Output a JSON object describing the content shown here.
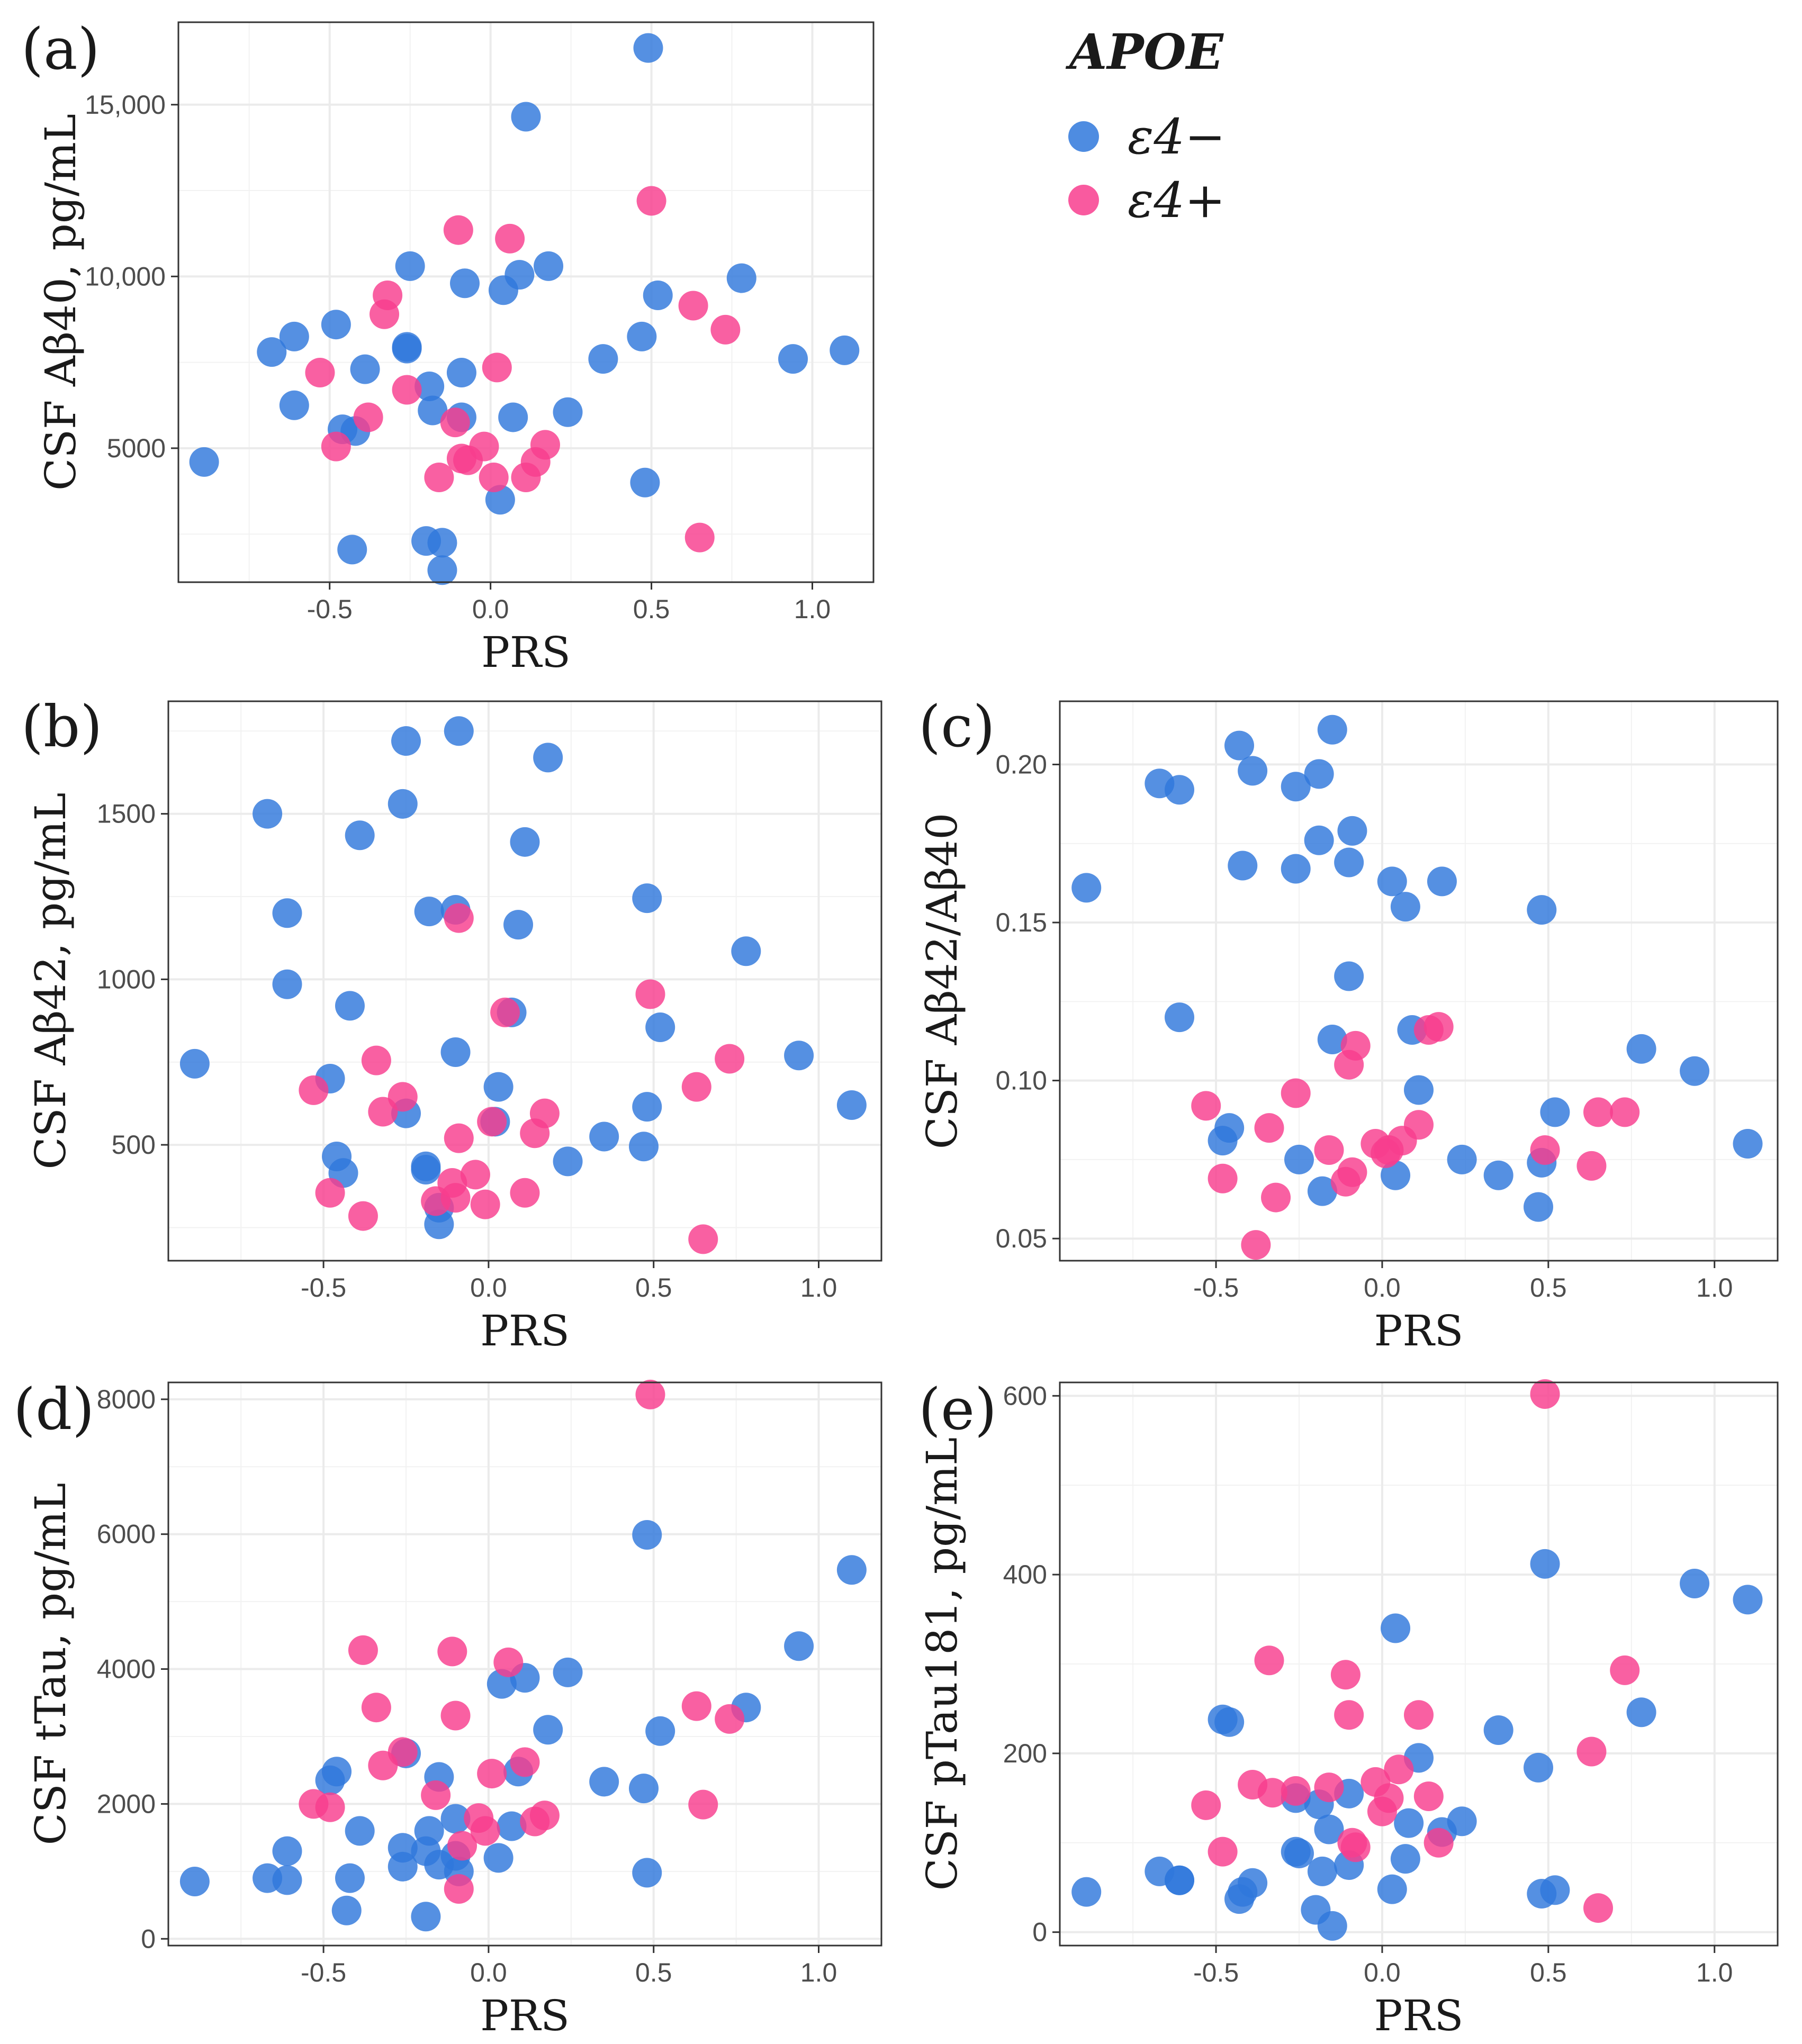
{
  "legend": {
    "title": "APOE",
    "items": [
      {
        "label": "ε4−",
        "color": "#2f78dc"
      },
      {
        "label": "ε4+",
        "color": "#f83d8e"
      }
    ]
  },
  "chart_data": [
    {
      "type": "scatter",
      "panel_label": "(a)",
      "xlabel": "PRS",
      "ylabel": "CSF Aβ40, pg/mL",
      "xlim": [
        -0.97,
        1.19
      ],
      "ylim": [
        1100,
        17400
      ],
      "x_ticks": [
        -0.5,
        0.0,
        0.5,
        1.0
      ],
      "x_tick_labels": [
        "-0.5",
        "0.0",
        "0.5",
        "1.0"
      ],
      "y_ticks": [
        5000,
        10000,
        15000
      ],
      "y_tick_labels": [
        "5000",
        "10,000",
        "15,000"
      ],
      "series": [
        {
          "name": "ε4−",
          "x": [
            -0.89,
            -0.68,
            -0.61,
            -0.61,
            -0.48,
            -0.46,
            -0.43,
            -0.42,
            -0.39,
            -0.26,
            -0.26,
            -0.25,
            -0.2,
            -0.19,
            -0.18,
            -0.15,
            -0.15,
            -0.09,
            -0.09,
            -0.08,
            0.03,
            0.04,
            0.07,
            0.09,
            0.11,
            0.18,
            0.24,
            0.35,
            0.47,
            0.48,
            0.49,
            0.52,
            0.78,
            0.94,
            1.1
          ],
          "y": [
            4600,
            7800,
            6250,
            8250,
            8600,
            5550,
            2050,
            5500,
            7300,
            7900,
            7950,
            10300,
            2300,
            6800,
            6100,
            2250,
            1450,
            7200,
            5900,
            9800,
            3500,
            9600,
            5900,
            10050,
            14650,
            10300,
            6050,
            7600,
            8250,
            4000,
            16650,
            9450,
            9950,
            7600,
            7850
          ]
        },
        {
          "name": "ε4+",
          "x": [
            -0.53,
            -0.48,
            -0.38,
            -0.33,
            -0.32,
            -0.26,
            -0.16,
            -0.11,
            -0.1,
            -0.09,
            -0.07,
            -0.02,
            0.01,
            0.02,
            0.06,
            0.11,
            0.14,
            0.17,
            0.5,
            0.63,
            0.65,
            0.73
          ],
          "y": [
            7200,
            5050,
            5900,
            8900,
            9450,
            6700,
            4150,
            5750,
            11350,
            4700,
            4650,
            5050,
            4150,
            7350,
            11100,
            4150,
            4600,
            5100,
            12200,
            9150,
            2400,
            8450
          ]
        }
      ]
    },
    {
      "type": "scatter",
      "panel_label": "(b)",
      "xlabel": "PRS",
      "ylabel": "CSF Aβ42, pg/mL",
      "xlim": [
        -0.97,
        1.19
      ],
      "ylim": [
        150,
        1840
      ],
      "x_ticks": [
        -0.5,
        0.0,
        0.5,
        1.0
      ],
      "x_tick_labels": [
        "-0.5",
        "0.0",
        "0.5",
        "1.0"
      ],
      "y_ticks": [
        500,
        1000,
        1500
      ],
      "y_tick_labels": [
        "500",
        "1000",
        "1500"
      ],
      "series": [
        {
          "name": "ε4−",
          "x": [
            -0.89,
            -0.67,
            -0.61,
            -0.61,
            -0.48,
            -0.46,
            -0.44,
            -0.42,
            -0.39,
            -0.26,
            -0.25,
            -0.25,
            -0.19,
            -0.19,
            -0.18,
            -0.15,
            -0.15,
            -0.1,
            -0.1,
            -0.09,
            0.02,
            0.03,
            0.07,
            0.09,
            0.11,
            0.18,
            0.24,
            0.35,
            0.47,
            0.48,
            0.48,
            0.52,
            0.78,
            0.94,
            1.1
          ],
          "y": [
            745,
            1500,
            985,
            1200,
            700,
            465,
            415,
            920,
            1435,
            1530,
            1720,
            595,
            425,
            435,
            1205,
            260,
            310,
            780,
            1210,
            1750,
            570,
            675,
            900,
            1165,
            1415,
            1670,
            450,
            525,
            495,
            615,
            1245,
            855,
            1085,
            770,
            620
          ]
        },
        {
          "name": "ε4+",
          "x": [
            -0.53,
            -0.48,
            -0.38,
            -0.34,
            -0.32,
            -0.26,
            -0.16,
            -0.11,
            -0.1,
            -0.09,
            -0.09,
            -0.04,
            -0.01,
            0.01,
            0.05,
            0.11,
            0.14,
            0.17,
            0.49,
            0.63,
            0.65,
            0.73
          ],
          "y": [
            665,
            355,
            285,
            755,
            600,
            645,
            330,
            385,
            340,
            1185,
            520,
            410,
            320,
            570,
            900,
            355,
            535,
            595,
            955,
            675,
            215,
            760
          ]
        }
      ]
    },
    {
      "type": "scatter",
      "panel_label": "(c)",
      "xlabel": "PRS",
      "ylabel": "CSF Aβ42/Aβ40",
      "xlim": [
        -0.97,
        1.19
      ],
      "ylim": [
        0.043,
        0.22
      ],
      "x_ticks": [
        -0.5,
        0.0,
        0.5,
        1.0
      ],
      "x_tick_labels": [
        "-0.5",
        "0.0",
        "0.5",
        "1.0"
      ],
      "y_ticks": [
        0.05,
        0.1,
        0.15,
        0.2
      ],
      "y_tick_labels": [
        "0.05",
        "0.10",
        "0.15",
        "0.20"
      ],
      "series": [
        {
          "name": "ε4−",
          "x": [
            -0.89,
            -0.67,
            -0.61,
            -0.61,
            -0.48,
            -0.46,
            -0.43,
            -0.42,
            -0.39,
            -0.26,
            -0.26,
            -0.25,
            -0.19,
            -0.19,
            -0.18,
            -0.15,
            -0.15,
            -0.1,
            -0.1,
            -0.09,
            0.03,
            0.04,
            0.07,
            0.09,
            0.11,
            0.18,
            0.24,
            0.35,
            0.47,
            0.48,
            0.48,
            0.52,
            0.78,
            0.94,
            1.1
          ],
          "y": [
            0.161,
            0.194,
            0.192,
            0.12,
            0.081,
            0.085,
            0.206,
            0.168,
            0.198,
            0.193,
            0.167,
            0.075,
            0.197,
            0.176,
            0.065,
            0.211,
            0.113,
            0.169,
            0.133,
            0.179,
            0.163,
            0.07,
            0.155,
            0.116,
            0.097,
            0.163,
            0.075,
            0.07,
            0.06,
            0.074,
            0.154,
            0.09,
            0.11,
            0.103,
            0.08
          ]
        },
        {
          "name": "ε4+",
          "x": [
            -0.53,
            -0.48,
            -0.38,
            -0.34,
            -0.32,
            -0.26,
            -0.16,
            -0.11,
            -0.1,
            -0.09,
            -0.08,
            -0.02,
            0.01,
            0.02,
            0.06,
            0.11,
            0.14,
            0.17,
            0.49,
            0.63,
            0.65,
            0.73
          ],
          "y": [
            0.092,
            0.069,
            0.048,
            0.085,
            0.063,
            0.096,
            0.078,
            0.068,
            0.105,
            0.071,
            0.111,
            0.08,
            0.077,
            0.078,
            0.081,
            0.086,
            0.116,
            0.117,
            0.078,
            0.073,
            0.09,
            0.09
          ]
        }
      ]
    },
    {
      "type": "scatter",
      "panel_label": "(d)",
      "xlabel": "PRS",
      "ylabel": "CSF tTau, pg/mL",
      "xlim": [
        -0.97,
        1.19
      ],
      "ylim": [
        -100,
        8250
      ],
      "x_ticks": [
        -0.5,
        0.0,
        0.5,
        1.0
      ],
      "x_tick_labels": [
        "-0.5",
        "0.0",
        "0.5",
        "1.0"
      ],
      "y_ticks": [
        0,
        2000,
        4000,
        6000,
        8000
      ],
      "y_tick_labels": [
        "0",
        "2000",
        "4000",
        "6000",
        "8000"
      ],
      "series": [
        {
          "name": "ε4−",
          "x": [
            -0.89,
            -0.67,
            -0.61,
            -0.61,
            -0.48,
            -0.46,
            -0.43,
            -0.42,
            -0.39,
            -0.26,
            -0.26,
            -0.25,
            -0.19,
            -0.19,
            -0.18,
            -0.15,
            -0.15,
            -0.1,
            -0.1,
            -0.09,
            0.03,
            0.04,
            0.07,
            0.09,
            0.11,
            0.18,
            0.24,
            0.35,
            0.47,
            0.48,
            0.48,
            0.52,
            0.78,
            0.94,
            1.1
          ],
          "y": [
            850,
            900,
            1300,
            870,
            2350,
            2480,
            420,
            900,
            1600,
            1350,
            1070,
            2750,
            330,
            1300,
            1600,
            1100,
            2400,
            1230,
            1780,
            1000,
            1200,
            3780,
            1670,
            2480,
            3870,
            3100,
            3950,
            2330,
            2230,
            980,
            5990,
            3080,
            3430,
            4340,
            5470
          ]
        },
        {
          "name": "ε4+",
          "x": [
            -0.53,
            -0.48,
            -0.38,
            -0.34,
            -0.32,
            -0.26,
            -0.16,
            -0.11,
            -0.1,
            -0.09,
            -0.08,
            -0.03,
            -0.01,
            0.01,
            0.06,
            0.11,
            0.14,
            0.17,
            0.49,
            0.63,
            0.65,
            0.73
          ],
          "y": [
            2000,
            1950,
            4280,
            3430,
            2570,
            2770,
            2130,
            4260,
            3310,
            740,
            1380,
            1790,
            1600,
            2450,
            4100,
            2620,
            1740,
            1830,
            8070,
            3450,
            1990,
            3260
          ]
        }
      ]
    },
    {
      "type": "scatter",
      "panel_label": "(e)",
      "xlabel": "PRS",
      "ylabel": "CSF pTau181, pg/mL",
      "xlim": [
        -0.97,
        1.19
      ],
      "ylim": [
        -15,
        615
      ],
      "x_ticks": [
        -0.5,
        0.0,
        0.5,
        1.0
      ],
      "x_tick_labels": [
        "-0.5",
        "0.0",
        "0.5",
        "1.0"
      ],
      "y_ticks": [
        0,
        200,
        400,
        600
      ],
      "y_tick_labels": [
        "0",
        "200",
        "400",
        "600"
      ],
      "series": [
        {
          "name": "ε4−",
          "x": [
            -0.89,
            -0.67,
            -0.61,
            -0.61,
            -0.48,
            -0.46,
            -0.43,
            -0.42,
            -0.39,
            -0.26,
            -0.26,
            -0.25,
            -0.2,
            -0.19,
            -0.18,
            -0.16,
            -0.15,
            -0.1,
            -0.1,
            0.03,
            0.04,
            0.07,
            0.08,
            0.11,
            0.18,
            0.24,
            0.35,
            0.47,
            0.48,
            0.49,
            0.52,
            0.78,
            0.94,
            1.1
          ],
          "y": [
            45,
            68,
            58,
            58,
            238,
            235,
            37,
            45,
            55,
            90,
            150,
            88,
            25,
            143,
            68,
            115,
            7,
            75,
            155,
            48,
            340,
            82,
            122,
            195,
            112,
            124,
            226,
            184,
            43,
            412,
            47,
            246,
            390,
            372
          ]
        },
        {
          "name": "ε4+",
          "x": [
            -0.53,
            -0.48,
            -0.39,
            -0.34,
            -0.33,
            -0.26,
            -0.16,
            -0.11,
            -0.1,
            -0.09,
            -0.08,
            -0.02,
            0.0,
            0.02,
            0.05,
            0.11,
            0.14,
            0.17,
            0.49,
            0.63,
            0.65,
            0.73
          ],
          "y": [
            142,
            90,
            165,
            304,
            156,
            158,
            162,
            288,
            243,
            100,
            95,
            168,
            135,
            150,
            182,
            243,
            152,
            100,
            602,
            202,
            27,
            293
          ]
        }
      ]
    }
  ]
}
